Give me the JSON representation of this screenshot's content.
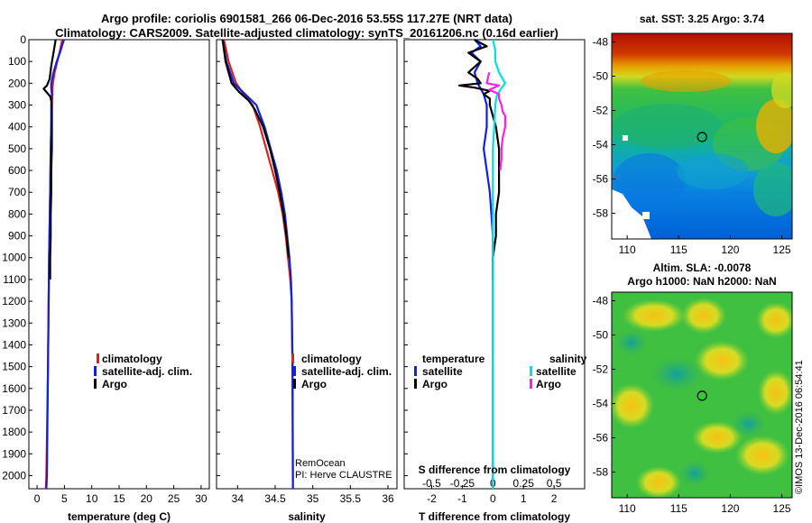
{
  "header": {
    "title_line1": "Argo profile: coriolis 6901581_266 06-Dec-2016 53.55S 117.27E (NRT data)",
    "title_line2": "Climatology: CARS2009. Satellite-adjusted climatology: synTS_20161206.nc (0.16d earlier)"
  },
  "depth_axis": {
    "ticks": [
      0,
      100,
      200,
      300,
      400,
      500,
      600,
      700,
      800,
      900,
      1000,
      1100,
      1200,
      1300,
      1400,
      1500,
      1600,
      1700,
      1800,
      1900,
      2000
    ],
    "range": [
      0,
      2060
    ]
  },
  "colors": {
    "climatology": "#e02020",
    "satellite": "#1020e0",
    "argo": "#000000",
    "sat_salinity": "#00e0e0",
    "argo_salinity": "#ff20e0"
  },
  "chart_data": [
    {
      "type": "line",
      "panel": "temperature",
      "xlabel": "temperature (deg C)",
      "xlim": [
        -1.5,
        31.5
      ],
      "xticks": [
        0,
        5,
        10,
        15,
        20,
        25,
        30
      ],
      "ylim": [
        2060,
        0
      ],
      "legend": [
        "climatology",
        "satellite-adj. clim.",
        "Argo"
      ],
      "series": [
        {
          "name": "climatology",
          "color": "#e02020",
          "depth": [
            0,
            50,
            100,
            150,
            200,
            220,
            250,
            300,
            400,
            500,
            700,
            1000,
            1500,
            2000,
            2060
          ],
          "values": [
            4.6,
            4.2,
            3.7,
            3.2,
            2.9,
            2.8,
            2.8,
            2.7,
            2.6,
            2.5,
            2.4,
            2.2,
            2.0,
            1.7,
            1.6
          ]
        },
        {
          "name": "satellite-adj. clim.",
          "color": "#1020e0",
          "depth": [
            0,
            50,
            100,
            150,
            200,
            220,
            250,
            300,
            400,
            500,
            700,
            1000,
            1500,
            2000,
            2060
          ],
          "values": [
            4.9,
            4.3,
            3.6,
            3.0,
            2.6,
            2.6,
            2.7,
            2.6,
            2.6,
            2.5,
            2.4,
            2.2,
            2.0,
            1.8,
            1.7
          ]
        },
        {
          "name": "Argo",
          "color": "#000000",
          "depth": [
            0,
            60,
            120,
            180,
            210,
            225,
            240,
            260,
            280,
            300,
            400,
            500,
            600,
            700,
            800,
            900,
            1000,
            1100
          ],
          "values": [
            3.4,
            3.0,
            2.6,
            2.3,
            1.8,
            1.2,
            1.7,
            2.4,
            2.6,
            2.7,
            2.7,
            2.7,
            2.6,
            2.6,
            2.5,
            2.5,
            2.4,
            2.4
          ]
        }
      ]
    },
    {
      "type": "line",
      "panel": "salinity",
      "xlabel": "salinity",
      "xlim": [
        33.72,
        36.12
      ],
      "xticks": [
        34,
        34.5,
        35,
        35.5,
        36
      ],
      "ylim": [
        2060,
        0
      ],
      "legend": [
        "climatology",
        "satellite-adj. clim.",
        "Argo"
      ],
      "credit_line1": "RemOcean",
      "credit_line2": "PI: Herve CLAUSTRE",
      "series": [
        {
          "name": "climatology",
          "color": "#e02020",
          "depth": [
            0,
            100,
            200,
            250,
            300,
            400,
            500,
            600,
            700,
            800,
            900,
            1000,
            1100,
            1200,
            1500,
            2000,
            2060
          ],
          "values": [
            33.82,
            33.88,
            33.98,
            34.08,
            34.2,
            34.3,
            34.38,
            34.46,
            34.54,
            34.6,
            34.64,
            34.67,
            34.7,
            34.72,
            34.73,
            34.735,
            34.735
          ]
        },
        {
          "name": "satellite-adj. clim.",
          "color": "#1020e0",
          "depth": [
            0,
            100,
            200,
            250,
            300,
            400,
            500,
            600,
            700,
            800,
            900,
            1000,
            1100,
            1200,
            1500,
            2000,
            2060
          ],
          "values": [
            33.8,
            33.85,
            33.95,
            34.1,
            34.25,
            34.36,
            34.44,
            34.52,
            34.58,
            34.63,
            34.66,
            34.69,
            34.71,
            34.72,
            34.73,
            34.735,
            34.735
          ]
        },
        {
          "name": "Argo",
          "color": "#000000",
          "depth": [
            0,
            100,
            200,
            240,
            280,
            320,
            400,
            500,
            600,
            700,
            800,
            900,
            1000
          ],
          "values": [
            33.8,
            33.84,
            33.92,
            34.02,
            34.15,
            34.23,
            34.34,
            34.43,
            34.5,
            34.56,
            34.61,
            34.65,
            34.68
          ]
        }
      ]
    },
    {
      "type": "line",
      "panel": "difference",
      "xlabel": "T difference from climatology",
      "xlabel_top": "S difference from climatology",
      "xlim": [
        -2.9,
        3.0
      ],
      "xticks": [
        -2,
        -1,
        0,
        1,
        2
      ],
      "s_tick_labels": [
        "-0.5",
        "-0.25",
        "0",
        "0.25",
        "0.5"
      ],
      "ylim": [
        2060,
        0
      ],
      "legend_temperature_title": "temperature",
      "legend_salinity_title": "salinity",
      "legend_temperature": [
        "satellite",
        "Argo"
      ],
      "legend_salinity": [
        "satellite",
        "Argo"
      ],
      "series": [
        {
          "name": "T satellite",
          "color": "#1020e0",
          "depth": [
            0,
            30,
            60,
            100,
            150,
            200,
            250,
            300,
            400,
            500,
            600,
            700,
            800,
            900,
            1000,
            1100,
            1500,
            2000,
            2060
          ],
          "values": [
            -0.6,
            -0.4,
            -0.7,
            -0.4,
            -0.6,
            -0.5,
            -0.3,
            -0.2,
            -0.2,
            -0.3,
            -0.2,
            -0.1,
            -0.05,
            0.0,
            0.0,
            0.0,
            0.0,
            0.0,
            0.0
          ]
        },
        {
          "name": "T Argo",
          "color": "#000000",
          "depth": [
            0,
            30,
            60,
            100,
            150,
            180,
            200,
            210,
            220,
            235,
            250,
            270,
            300,
            350,
            400,
            500,
            600,
            700,
            800,
            900,
            1000,
            1100
          ],
          "values": [
            -0.6,
            -0.2,
            -0.8,
            -0.4,
            -0.8,
            -0.5,
            -0.4,
            -1.1,
            -0.6,
            -0.1,
            -0.3,
            -0.1,
            -0.1,
            0.0,
            0.1,
            0.2,
            0.2,
            0.2,
            0.1,
            0.1,
            0.0,
            0.0
          ]
        },
        {
          "name": "S satellite",
          "color": "#00e0e0",
          "depth": [
            0,
            50,
            100,
            150,
            200,
            230,
            260,
            300,
            400,
            500,
            700,
            1000,
            1500,
            2000,
            2060
          ],
          "values": [
            0.0,
            0.02,
            0.02,
            0.05,
            0.1,
            0.06,
            0.03,
            0.02,
            0.01,
            0.0,
            0.0,
            0.0,
            0.0,
            0.0,
            0.0
          ]
        },
        {
          "name": "S Argo",
          "color": "#ff20e0",
          "depth": [
            150,
            200,
            210,
            230,
            250,
            270,
            300,
            330,
            350,
            380,
            400,
            450,
            500,
            550,
            600
          ],
          "values": [
            -0.03,
            -0.05,
            0.05,
            -0.03,
            0.05,
            0.05,
            0.07,
            0.08,
            0.1,
            0.1,
            0.1,
            0.08,
            0.07,
            0.07,
            0.06
          ]
        }
      ]
    },
    {
      "type": "heatmap",
      "panel": "sst_map",
      "title": "sat. SST: 3.25 Argo: 3.74",
      "xticks": [
        110,
        115,
        120,
        125
      ],
      "yticks": [
        -48,
        -50,
        -52,
        -54,
        -56,
        -58
      ],
      "xlim": [
        108.5,
        126
      ],
      "ylim": [
        -59.5,
        -47.5
      ],
      "argo_location": [
        117.27,
        -53.55
      ]
    },
    {
      "type": "heatmap",
      "panel": "sla_map",
      "title_line1": "Altim. SLA: -0.0078",
      "title_line2": "Argo h1000: NaN h2000: NaN",
      "xticks": [
        110,
        115,
        120,
        125
      ],
      "yticks": [
        -48,
        -50,
        -52,
        -54,
        -56,
        -58
      ],
      "xlim": [
        108.5,
        126
      ],
      "ylim": [
        -59.5,
        -47.5
      ],
      "argo_location": [
        117.27,
        -53.55
      ]
    }
  ],
  "side_credit": "©IMOS 13-Dec-2016 06:54:41"
}
